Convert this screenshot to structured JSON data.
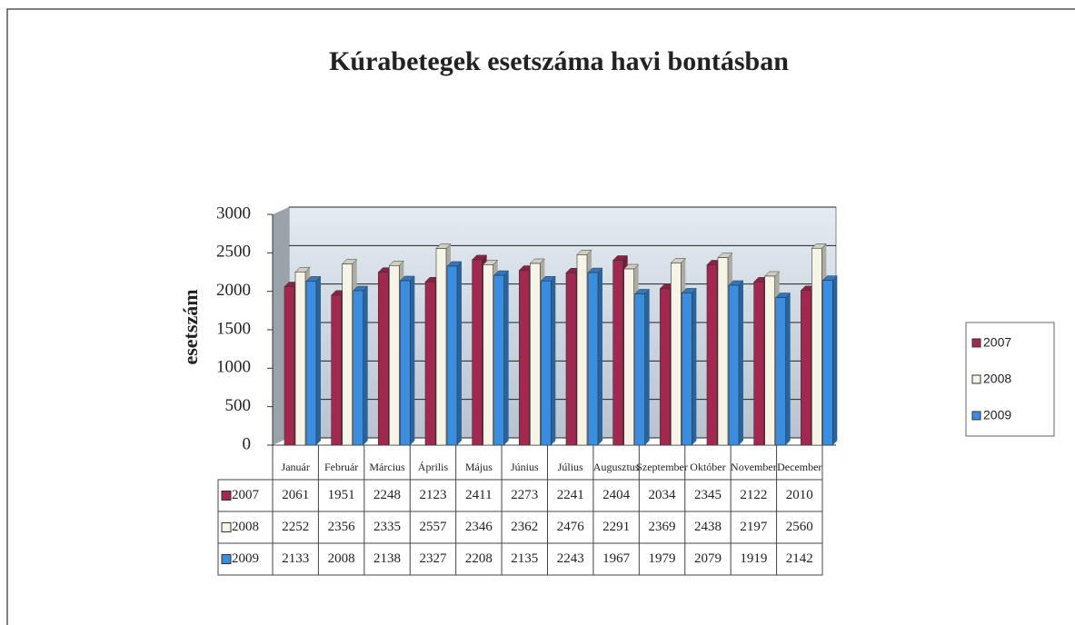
{
  "chart_data": {
    "type": "bar",
    "title": "Kúrabetegek esetszáma havi bontásban",
    "y_label": "esetszám",
    "categories": [
      "Január",
      "Február",
      "Március",
      "Április",
      "Május",
      "Június",
      "Július",
      "Augusztus",
      "Szeptember",
      "Október",
      "November",
      "December"
    ],
    "series": [
      {
        "name": "2007",
        "color": "#a3284f",
        "values": [
          2061,
          1951,
          2248,
          2123,
          2411,
          2273,
          2241,
          2404,
          2034,
          2345,
          2122,
          2010
        ]
      },
      {
        "name": "2008",
        "color": "#f6f4e6",
        "values": [
          2252,
          2356,
          2335,
          2557,
          2346,
          2362,
          2476,
          2291,
          2369,
          2438,
          2197,
          2560
        ]
      },
      {
        "name": "2009",
        "color": "#3b8de0",
        "values": [
          2133,
          2008,
          2138,
          2327,
          2208,
          2135,
          2243,
          1967,
          1979,
          2079,
          1919,
          2142
        ]
      }
    ],
    "ylim": [
      0,
      3000
    ],
    "yticks": [
      0,
      500,
      1000,
      1500,
      2000,
      2500,
      3000
    ],
    "grid": true,
    "legend": "right",
    "data_table": true
  }
}
